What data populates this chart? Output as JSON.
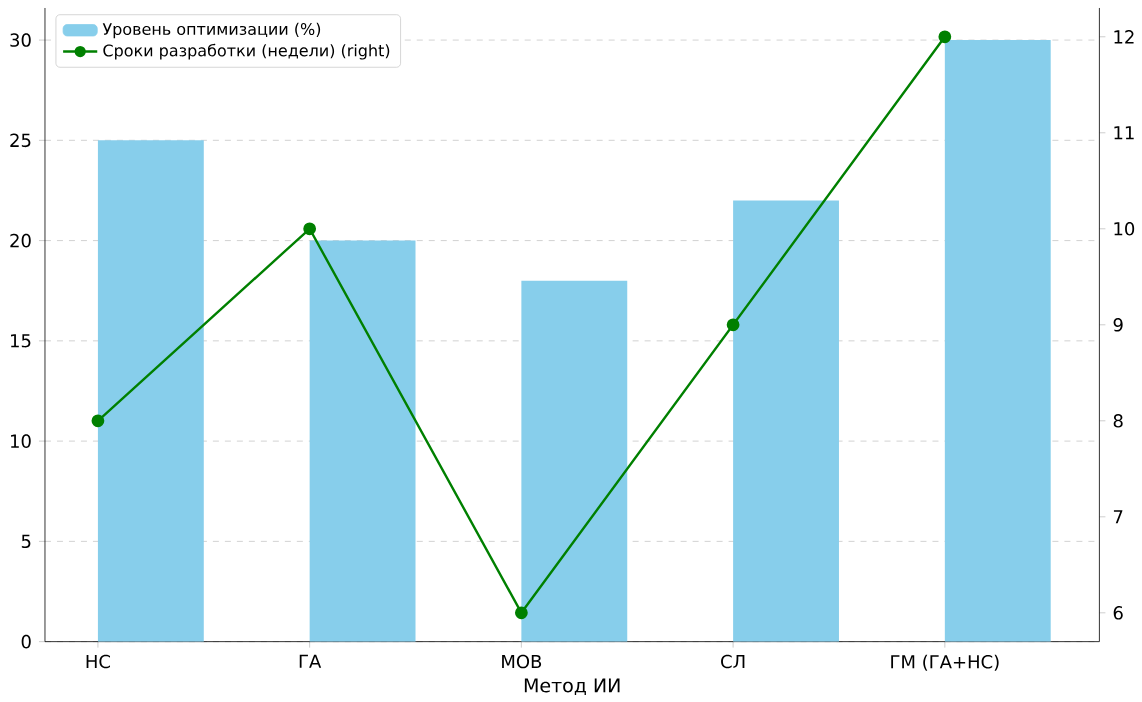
{
  "chart_data": {
    "type": "bar",
    "xlabel": "Метод ИИ",
    "categories": [
      "НС",
      "ГА",
      "МОВ",
      "СЛ",
      "ГМ (ГА+НС)"
    ],
    "series": [
      {
        "name": "Уровень оптимизации (%)",
        "color": "#87ceeb",
        "values": [
          25,
          20,
          18,
          22,
          30
        ]
      },
      {
        "name": "Сроки разработки (недели) (right)",
        "type": "line",
        "axis": "y2",
        "color": "#008000",
        "marker": "circle",
        "values": [
          8,
          10,
          6,
          9,
          12
        ]
      }
    ],
    "ylim": [
      0,
      31.6
    ],
    "yticks": [
      0,
      5,
      10,
      15,
      20,
      25,
      30
    ],
    "y2lim": [
      5.7,
      12.3
    ],
    "y2ticks": [
      6,
      7,
      8,
      9,
      10,
      11,
      12
    ],
    "grid": "y",
    "legend": "top left"
  }
}
